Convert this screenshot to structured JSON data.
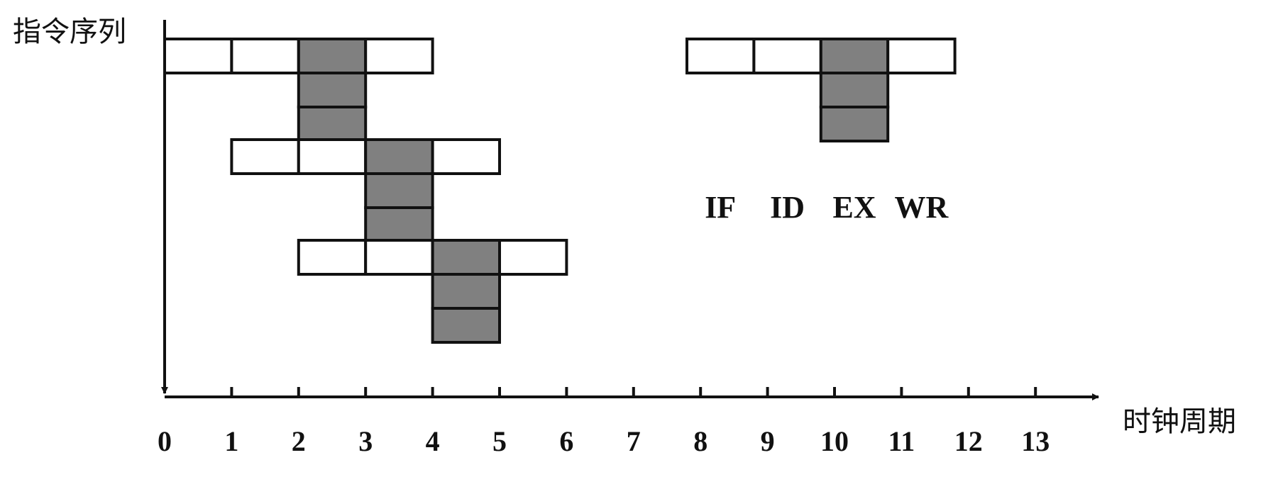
{
  "labels": {
    "y_axis": "指令序列",
    "x_axis": "时钟周期"
  },
  "x_ticks": [
    "0",
    "1",
    "2",
    "3",
    "4",
    "5",
    "6",
    "7",
    "8",
    "9",
    "10",
    "11",
    "12",
    "13"
  ],
  "legend": {
    "stages": [
      "IF",
      "ID",
      "EX",
      "WR"
    ],
    "ex_cycles": 3
  },
  "instructions": [
    {
      "start_cycle": 0,
      "stages": 4,
      "ex_cycles": 3
    },
    {
      "start_cycle": 1,
      "stages": 4,
      "ex_cycles": 3
    },
    {
      "start_cycle": 2,
      "stages": 4,
      "ex_cycles": 3
    }
  ],
  "colors": {
    "ex_fill": "#808080",
    "box_fill": "#ffffff",
    "stroke": "#111111"
  }
}
